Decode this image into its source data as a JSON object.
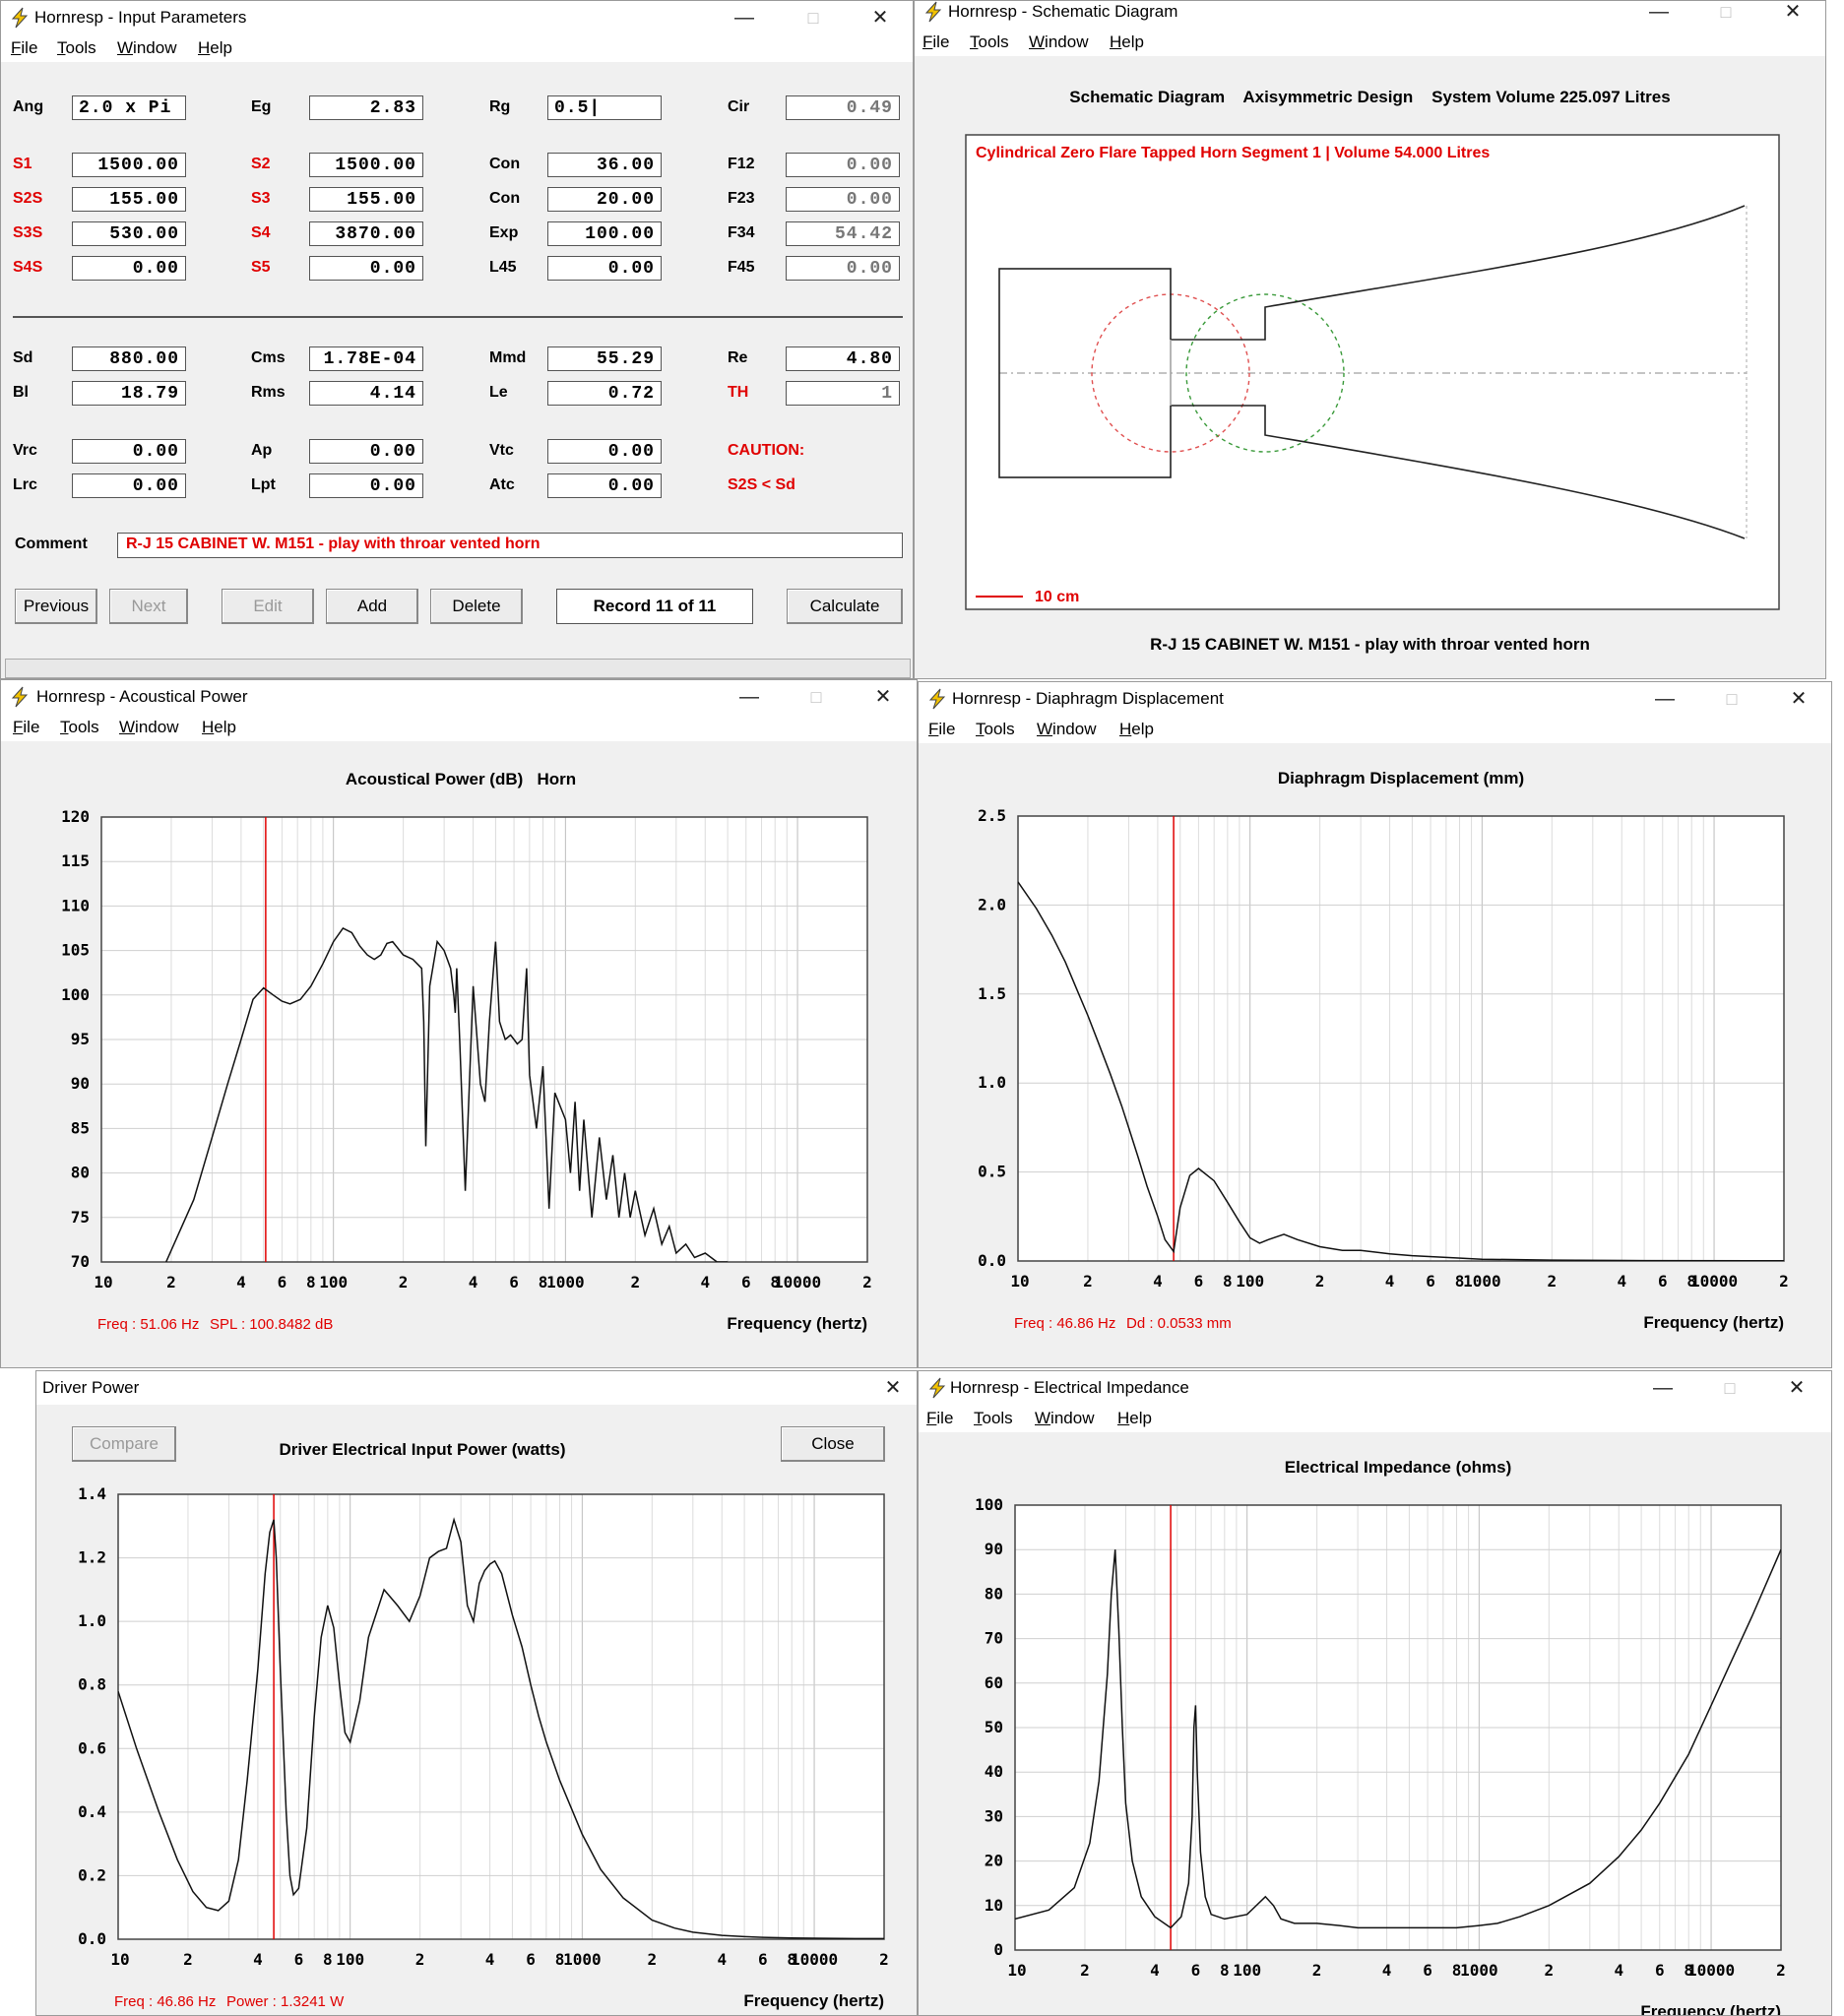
{
  "input_params": {
    "title": "Hornresp - Input Parameters",
    "menu": [
      "File",
      "Tools",
      "Window",
      "Help"
    ],
    "rows_top": [
      [
        {
          "l": "Ang",
          "v": "2.0 x Pi",
          "left": true
        },
        {
          "l": "Eg",
          "v": "2.83"
        },
        {
          "l": "Rg",
          "v": "0.5",
          "left": true,
          "cursor": true
        },
        {
          "l": "Cir",
          "v": "0.49",
          "gray": true
        }
      ],
      [
        {
          "l": "S1",
          "v": "1500.00",
          "red": true
        },
        {
          "l": "S2",
          "v": "1500.00",
          "red": true
        },
        {
          "l": "Con",
          "v": "36.00"
        },
        {
          "l": "F12",
          "v": "0.00",
          "gray": true
        }
      ],
      [
        {
          "l": "S2S",
          "v": "155.00",
          "red": true
        },
        {
          "l": "S3",
          "v": "155.00",
          "red": true
        },
        {
          "l": "Con",
          "v": "20.00"
        },
        {
          "l": "F23",
          "v": "0.00",
          "gray": true
        }
      ],
      [
        {
          "l": "S3S",
          "v": "530.00",
          "red": true
        },
        {
          "l": "S4",
          "v": "3870.00",
          "red": true
        },
        {
          "l": "Exp",
          "v": "100.00"
        },
        {
          "l": "F34",
          "v": "54.42",
          "gray": true
        }
      ],
      [
        {
          "l": "S4S",
          "v": "0.00",
          "red": true
        },
        {
          "l": "S5",
          "v": "0.00",
          "red": true
        },
        {
          "l": "L45",
          "v": "0.00"
        },
        {
          "l": "F45",
          "v": "0.00",
          "gray": true
        }
      ]
    ],
    "rows_mid": [
      [
        {
          "l": "Sd",
          "v": "880.00"
        },
        {
          "l": "Cms",
          "v": "1.78E-04"
        },
        {
          "l": "Mmd",
          "v": "55.29"
        },
        {
          "l": "Re",
          "v": "4.80"
        }
      ],
      [
        {
          "l": "Bl",
          "v": "18.79"
        },
        {
          "l": "Rms",
          "v": "4.14"
        },
        {
          "l": "Le",
          "v": "0.72"
        },
        {
          "l": "TH",
          "v": "1",
          "red": true,
          "gray": true
        }
      ]
    ],
    "rows_low": [
      [
        {
          "l": "Vrc",
          "v": "0.00"
        },
        {
          "l": "Ap",
          "v": "0.00"
        },
        {
          "l": "Vtc",
          "v": "0.00"
        }
      ],
      [
        {
          "l": "Lrc",
          "v": "0.00"
        },
        {
          "l": "Lpt",
          "v": "0.00"
        },
        {
          "l": "Atc",
          "v": "0.00"
        }
      ]
    ],
    "caution_label": "CAUTION:",
    "caution_text": "S2S < Sd",
    "comment_label": "Comment",
    "comment": "R-J 15 CABINET W. M151 - play with throar vented horn",
    "buttons": {
      "previous": "Previous",
      "next": "Next",
      "edit": "Edit",
      "add": "Add",
      "delete": "Delete",
      "record": "Record 11 of 11",
      "calculate": "Calculate"
    }
  },
  "schematic": {
    "title": "Hornresp - Schematic Diagram",
    "menu": [
      "File",
      "Tools",
      "Window",
      "Help"
    ],
    "header": "Schematic Diagram    Axisymmetric Design    System Volume 225.097 Litres",
    "segment": "Cylindrical Zero Flare Tapped Horn Segment 1 | Volume 54.000 Litres",
    "scale": "10 cm",
    "caption": "R-J 15 CABINET W. M151 - play with throar vented horn"
  },
  "acoustical_power": {
    "title": "Hornresp - Acoustical Power",
    "menu": [
      "File",
      "Tools",
      "Window",
      "Help"
    ],
    "readout_freq": "Freq : 51.06 Hz",
    "readout_val": "SPL : 100.8482 dB",
    "chart_data": {
      "type": "line",
      "title": "Acoustical Power (dB)   Horn",
      "xlabel": "Frequency (hertz)",
      "xscale": "log",
      "xlim": [
        10,
        20000
      ],
      "ylim": [
        70,
        120
      ],
      "yticks": [
        70,
        75,
        80,
        85,
        90,
        95,
        100,
        105,
        110,
        115,
        120
      ],
      "xticks": [
        "10",
        "2",
        "4",
        "6",
        "8",
        "100",
        "2",
        "4",
        "6",
        "8",
        "1000",
        "2",
        "4",
        "6",
        "8",
        "10000",
        "2"
      ],
      "marker_x": 51.06,
      "x": [
        19,
        25,
        30,
        35,
        40,
        45,
        50,
        55,
        60,
        65,
        72,
        80,
        90,
        100,
        110,
        120,
        130,
        140,
        150,
        160,
        170,
        180,
        200,
        220,
        230,
        240,
        245,
        250,
        260,
        280,
        300,
        320,
        330,
        335,
        340,
        350,
        370,
        400,
        430,
        450,
        470,
        500,
        520,
        550,
        580,
        600,
        620,
        650,
        680,
        700,
        750,
        800,
        850,
        900,
        1000,
        1050,
        1100,
        1150,
        1200,
        1300,
        1400,
        1500,
        1600,
        1700,
        1800,
        1900,
        2000,
        2200,
        2400,
        2600,
        2800,
        3000,
        3300,
        3600,
        4000,
        4500,
        5000
      ],
      "y": [
        70,
        77,
        84,
        90,
        95,
        99.5,
        100.8,
        100,
        99.3,
        99,
        99.5,
        101,
        103.5,
        106,
        107.5,
        107,
        105.5,
        104.5,
        104,
        104.5,
        105.8,
        106,
        104.5,
        104,
        103.5,
        103,
        97,
        83,
        101,
        106,
        105,
        103,
        100,
        98,
        103,
        95,
        78,
        101,
        90,
        88,
        97,
        106,
        97,
        95,
        95.5,
        95,
        94.5,
        95,
        103,
        91,
        85,
        92,
        76,
        89,
        86,
        80,
        88,
        78,
        86,
        75,
        84,
        77,
        82,
        75,
        80,
        75,
        78,
        73,
        76,
        72,
        74,
        71,
        72,
        70.5,
        71,
        70,
        70
      ]
    }
  },
  "diaphragm": {
    "title": "Hornresp - Diaphragm Displacement",
    "menu": [
      "File",
      "Tools",
      "Window",
      "Help"
    ],
    "readout_freq": "Freq : 46.86 Hz",
    "readout_val": "Dd : 0.0533 mm",
    "chart_data": {
      "type": "line",
      "title": "Diaphragm Displacement (mm)",
      "xlabel": "Frequency (hertz)",
      "xscale": "log",
      "xlim": [
        10,
        20000
      ],
      "ylim": [
        0,
        2.5
      ],
      "yticks": [
        0.0,
        0.5,
        1.0,
        1.5,
        2.0,
        2.5
      ],
      "xticks": [
        "10",
        "2",
        "4",
        "6",
        "8",
        "100",
        "2",
        "4",
        "6",
        "8",
        "1000",
        "2",
        "4",
        "6",
        "8",
        "10000",
        "2"
      ],
      "marker_x": 46.86,
      "x": [
        10,
        12,
        14,
        16,
        18,
        20,
        22,
        25,
        28,
        30,
        33,
        36,
        40,
        43,
        46.86,
        50,
        55,
        60,
        70,
        80,
        90,
        100,
        110,
        120,
        140,
        160,
        200,
        250,
        300,
        400,
        500,
        700,
        1000,
        2000,
        5000,
        20000
      ],
      "y": [
        2.13,
        1.98,
        1.83,
        1.68,
        1.52,
        1.38,
        1.24,
        1.05,
        0.87,
        0.75,
        0.58,
        0.42,
        0.25,
        0.12,
        0.053,
        0.3,
        0.48,
        0.52,
        0.45,
        0.33,
        0.22,
        0.13,
        0.1,
        0.12,
        0.15,
        0.12,
        0.08,
        0.06,
        0.06,
        0.04,
        0.03,
        0.02,
        0.01,
        0.005,
        0.002,
        0.001
      ]
    }
  },
  "driver_power": {
    "title": "Driver Power",
    "compare": "Compare",
    "close": "Close",
    "readout_freq": "Freq : 46.86 Hz",
    "readout_val": "Power : 1.3241 W",
    "chart_data": {
      "type": "line",
      "title": "Driver Electrical Input Power (watts)",
      "xlabel": "Frequency (hertz)",
      "xscale": "log",
      "xlim": [
        10,
        20000
      ],
      "ylim": [
        0,
        1.4
      ],
      "yticks": [
        0.0,
        0.2,
        0.4,
        0.6,
        0.8,
        1.0,
        1.2,
        1.4
      ],
      "xticks": [
        "10",
        "2",
        "4",
        "6",
        "8",
        "100",
        "2",
        "4",
        "6",
        "8",
        "1000",
        "2",
        "4",
        "6",
        "8",
        "10000",
        "2"
      ],
      "marker_x": 46.86,
      "x": [
        10,
        12,
        15,
        18,
        21,
        24,
        27,
        30,
        33,
        36,
        40,
        43,
        45,
        46.86,
        48,
        50,
        53,
        55,
        57,
        60,
        65,
        70,
        75,
        80,
        85,
        90,
        95,
        100,
        110,
        120,
        140,
        160,
        180,
        200,
        220,
        240,
        260,
        280,
        300,
        320,
        340,
        360,
        380,
        400,
        420,
        450,
        500,
        550,
        600,
        650,
        700,
        800,
        900,
        1000,
        1200,
        1500,
        2000,
        2500,
        3000,
        4000,
        5000,
        6000,
        8000,
        10000,
        15000,
        20000
      ],
      "y": [
        0.78,
        0.6,
        0.4,
        0.25,
        0.15,
        0.1,
        0.09,
        0.12,
        0.25,
        0.5,
        0.85,
        1.15,
        1.28,
        1.32,
        1.2,
        0.85,
        0.4,
        0.2,
        0.14,
        0.16,
        0.35,
        0.7,
        0.95,
        1.05,
        0.98,
        0.8,
        0.65,
        0.62,
        0.75,
        0.95,
        1.1,
        1.05,
        1.0,
        1.08,
        1.2,
        1.22,
        1.23,
        1.32,
        1.25,
        1.05,
        1.0,
        1.12,
        1.16,
        1.18,
        1.19,
        1.15,
        1.02,
        0.92,
        0.8,
        0.7,
        0.62,
        0.5,
        0.41,
        0.33,
        0.22,
        0.13,
        0.06,
        0.035,
        0.022,
        0.012,
        0.008,
        0.006,
        0.004,
        0.003,
        0.002,
        0.002
      ]
    }
  },
  "impedance": {
    "title": "Hornresp - Electrical Impedance",
    "menu": [
      "File",
      "Tools",
      "Window",
      "Help"
    ],
    "chart_data": {
      "type": "line",
      "title": "Electrical Impedance (ohms)",
      "xlabel": "Frequency (hertz)",
      "xscale": "log",
      "xlim": [
        10,
        20000
      ],
      "ylim": [
        0,
        100
      ],
      "yticks": [
        0,
        10,
        20,
        30,
        40,
        50,
        60,
        70,
        80,
        90,
        100
      ],
      "xticks": [
        "10",
        "2",
        "4",
        "6",
        "8",
        "100",
        "2",
        "4",
        "6",
        "8",
        "1000",
        "2",
        "4",
        "6",
        "8",
        "10000",
        "2"
      ],
      "marker_x": 46.86,
      "x": [
        10,
        14,
        18,
        21,
        23,
        25,
        26,
        27,
        28,
        29,
        30,
        32,
        35,
        40,
        46.86,
        52,
        56,
        58,
        59,
        60,
        61,
        63,
        66,
        70,
        80,
        100,
        120,
        130,
        140,
        160,
        200,
        250,
        300,
        400,
        500,
        600,
        800,
        1000,
        1200,
        1500,
        2000,
        3000,
        4000,
        5000,
        6000,
        8000,
        10000,
        12000,
        15000,
        20000
      ],
      "y": [
        7,
        9,
        14,
        24,
        38,
        62,
        80,
        90,
        72,
        50,
        33,
        20,
        12,
        7.5,
        5,
        7.5,
        15,
        30,
        50,
        55,
        40,
        22,
        12,
        8,
        7,
        8,
        12,
        10,
        7,
        6,
        6,
        5.5,
        5,
        5,
        5,
        5,
        5,
        5.5,
        6,
        7.5,
        10,
        15,
        21,
        27,
        33,
        44,
        55,
        64,
        75,
        90
      ]
    }
  }
}
